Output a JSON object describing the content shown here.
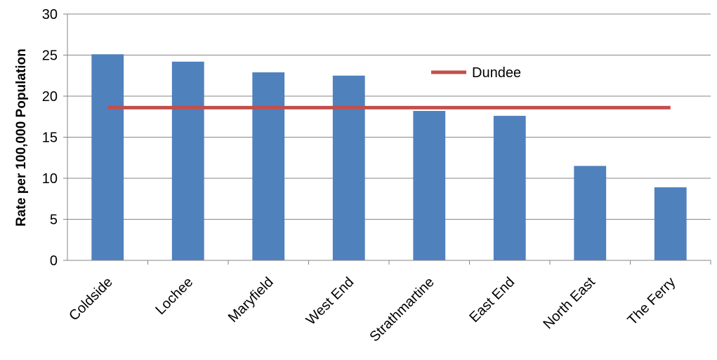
{
  "chart_data": {
    "type": "bar",
    "categories": [
      "Coldside",
      "Lochee",
      "Maryfield",
      "West End",
      "Strathmartine",
      "East End",
      "North East",
      "The Ferry"
    ],
    "values": [
      25.1,
      24.2,
      22.9,
      22.5,
      18.2,
      17.6,
      11.5,
      8.9
    ],
    "series": [
      {
        "values": [
          25.1,
          24.2,
          22.9,
          22.5,
          18.2,
          17.6,
          11.5,
          8.9
        ]
      }
    ],
    "reference_line": {
      "name": "Dundee",
      "value": 18.6
    },
    "title": "",
    "xlabel": "",
    "ylabel": "Rate per 100,000 Population",
    "ylim": [
      0,
      30
    ],
    "yticks": [
      0,
      5,
      10,
      15,
      20,
      25,
      30
    ],
    "grid": true,
    "legend_position": "top-right",
    "colors": {
      "bar": "#4f81bd",
      "line": "#c0504d",
      "grid": "#868686",
      "axis": "#868686"
    }
  }
}
